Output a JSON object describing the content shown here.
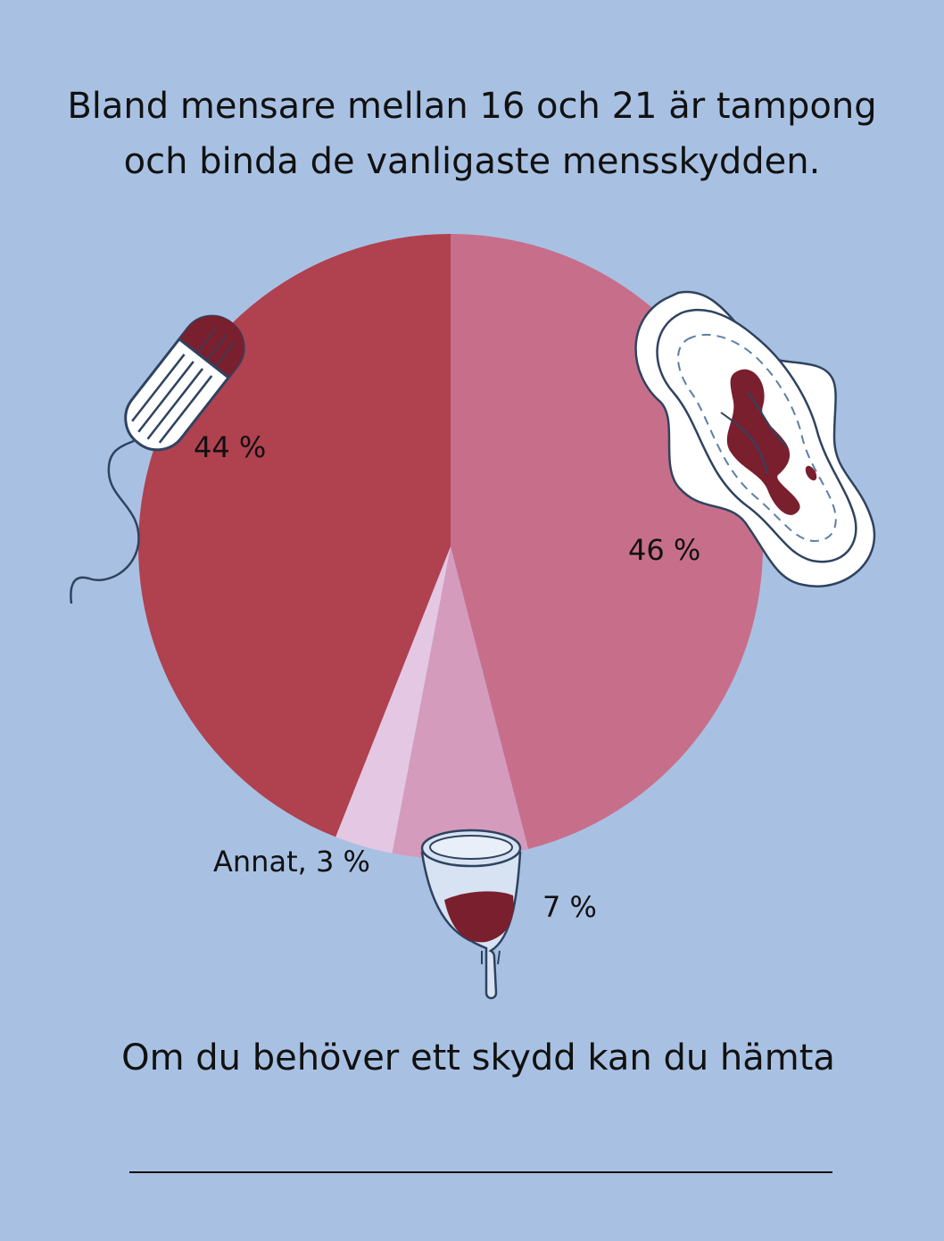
{
  "title_lines": [
    "Bland mensare mellan 16 och 21 är tampong",
    "och binda de vanligaste mensskydden."
  ],
  "chart_data": {
    "type": "pie",
    "title": "Bland mensare mellan 16 och 21 är tampong och binda de vanligaste mensskydden.",
    "slices": [
      {
        "label": "46 %",
        "value": 46,
        "color": "#c76f8a",
        "icon": "pad-icon"
      },
      {
        "label": "7 %",
        "value": 7,
        "color": "#d49bbd",
        "icon": "menstrual-cup-icon"
      },
      {
        "label": "Annat, 3 %",
        "value": 3,
        "color": "#e4c7e3"
      },
      {
        "label": "44 %",
        "value": 44,
        "color": "#b0414f",
        "icon": "tampon-icon"
      }
    ],
    "start": "top",
    "direction": "clockwise"
  },
  "footer": {
    "text": "Om du behöver ett skydd kan du hämta",
    "blank_line": true
  },
  "colors": {
    "background": "#a8c1e3",
    "blood": "#7a1f2e",
    "outline": "#2f4360"
  }
}
